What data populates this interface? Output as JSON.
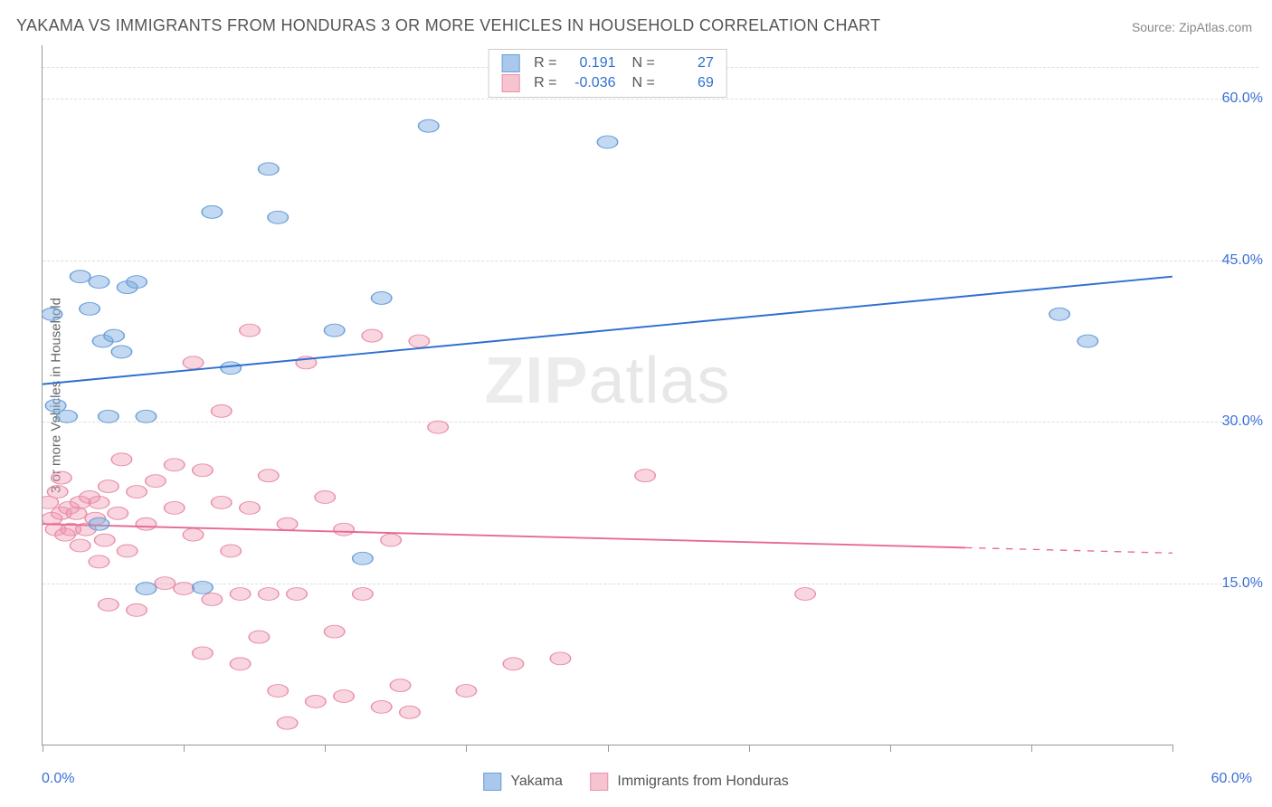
{
  "title": "YAKAMA VS IMMIGRANTS FROM HONDURAS 3 OR MORE VEHICLES IN HOUSEHOLD CORRELATION CHART",
  "source": "Source: ZipAtlas.com",
  "watermark_main": "ZIP",
  "watermark_sub": "atlas",
  "y_axis_title": "3 or more Vehicles in Household",
  "axes": {
    "xlim": [
      0,
      60
    ],
    "ylim": [
      0,
      65
    ],
    "x_label_min": "0.0%",
    "x_label_max": "60.0%",
    "x_label_color": "#3b6fd6",
    "y_ticks": [
      {
        "value": 15,
        "label": "15.0%",
        "color": "#3b6fd6"
      },
      {
        "value": 30,
        "label": "30.0%",
        "color": "#3b6fd6"
      },
      {
        "value": 45,
        "label": "45.0%",
        "color": "#3b6fd6"
      },
      {
        "value": 60,
        "label": "60.0%",
        "color": "#3b6fd6"
      }
    ],
    "x_tick_positions": [
      0,
      7.5,
      15,
      22.5,
      30,
      37.5,
      45,
      52.5,
      60
    ],
    "grid_color": "#dddddd",
    "top_grid": 63
  },
  "series": {
    "yakama": {
      "label": "Yakama",
      "color_fill": "rgba(120,170,225,0.45)",
      "color_stroke": "#6a9fd8",
      "line_color": "#2f6fd0",
      "swatch_fill": "#a9c8ec",
      "swatch_border": "#6a9fd8",
      "R": "0.191",
      "N": "27",
      "marker_radius": 9,
      "line_width": 2.5,
      "trend": {
        "x1": 0,
        "y1": 33.5,
        "x2": 60,
        "y2": 43.5
      },
      "points": [
        [
          0.5,
          40
        ],
        [
          0.7,
          31.5
        ],
        [
          1.3,
          30.5
        ],
        [
          2.0,
          43.5
        ],
        [
          2.5,
          40.5
        ],
        [
          3.0,
          43.0
        ],
        [
          3.0,
          20.5
        ],
        [
          3.2,
          37.5
        ],
        [
          3.5,
          30.5
        ],
        [
          3.8,
          38.0
        ],
        [
          4.2,
          36.5
        ],
        [
          4.5,
          42.5
        ],
        [
          5.0,
          43.0
        ],
        [
          5.5,
          14.5
        ],
        [
          5.5,
          30.5
        ],
        [
          8.5,
          14.6
        ],
        [
          9.0,
          49.5
        ],
        [
          10.0,
          35.0
        ],
        [
          12.0,
          53.5
        ],
        [
          12.5,
          49.0
        ],
        [
          15.5,
          38.5
        ],
        [
          17.0,
          17.3
        ],
        [
          18.0,
          41.5
        ],
        [
          20.5,
          57.5
        ],
        [
          30.0,
          56.0
        ],
        [
          54.0,
          40.0
        ],
        [
          55.5,
          37.5
        ]
      ]
    },
    "honduras": {
      "label": "Immigrants from Honduras",
      "color_fill": "rgba(240,150,175,0.40)",
      "color_stroke": "#e890aa",
      "line_color": "#e76a93",
      "swatch_fill": "#f6c3d1",
      "swatch_border": "#e890aa",
      "R": "-0.036",
      "N": "69",
      "marker_radius": 9,
      "line_width": 2.5,
      "trend": {
        "x1": 0,
        "y1": 20.5,
        "x2": 49,
        "y2": 18.3
      },
      "trend_dash": {
        "x1": 49,
        "y1": 18.3,
        "x2": 60,
        "y2": 17.8
      },
      "points": [
        [
          0.3,
          22.5
        ],
        [
          0.5,
          21.0
        ],
        [
          0.7,
          20.0
        ],
        [
          0.8,
          23.5
        ],
        [
          1.0,
          21.5
        ],
        [
          1.2,
          19.5
        ],
        [
          1.4,
          22.0
        ],
        [
          1.5,
          20.0
        ],
        [
          1.8,
          21.5
        ],
        [
          2.0,
          18.5
        ],
        [
          2.0,
          22.5
        ],
        [
          2.3,
          20.0
        ],
        [
          2.5,
          23.0
        ],
        [
          2.8,
          21.0
        ],
        [
          3.0,
          17.0
        ],
        [
          3.0,
          22.5
        ],
        [
          3.3,
          19.0
        ],
        [
          3.5,
          24.0
        ],
        [
          3.5,
          13.0
        ],
        [
          4.0,
          21.5
        ],
        [
          4.2,
          26.5
        ],
        [
          4.5,
          18.0
        ],
        [
          5.0,
          23.5
        ],
        [
          5.0,
          12.5
        ],
        [
          5.5,
          20.5
        ],
        [
          6.0,
          24.5
        ],
        [
          6.5,
          15.0
        ],
        [
          7.0,
          22.0
        ],
        [
          7.0,
          26.0
        ],
        [
          7.5,
          14.5
        ],
        [
          8.0,
          35.5
        ],
        [
          8.0,
          19.5
        ],
        [
          8.5,
          8.5
        ],
        [
          8.5,
          25.5
        ],
        [
          9.0,
          13.5
        ],
        [
          9.5,
          22.5
        ],
        [
          9.5,
          31.0
        ],
        [
          10.0,
          18.0
        ],
        [
          10.5,
          14.0
        ],
        [
          10.5,
          7.5
        ],
        [
          11.0,
          38.5
        ],
        [
          11.0,
          22.0
        ],
        [
          11.5,
          10.0
        ],
        [
          12.0,
          14.0
        ],
        [
          12.0,
          25.0
        ],
        [
          12.5,
          5.0
        ],
        [
          13.0,
          20.5
        ],
        [
          13.0,
          2.0
        ],
        [
          13.5,
          14.0
        ],
        [
          14.0,
          35.5
        ],
        [
          14.5,
          4.0
        ],
        [
          15.0,
          23.0
        ],
        [
          15.5,
          10.5
        ],
        [
          16.0,
          20.0
        ],
        [
          16.0,
          4.5
        ],
        [
          17.0,
          14.0
        ],
        [
          17.5,
          38.0
        ],
        [
          18.0,
          3.5
        ],
        [
          18.5,
          19.0
        ],
        [
          19.0,
          5.5
        ],
        [
          19.5,
          3.0
        ],
        [
          20.0,
          37.5
        ],
        [
          21.0,
          29.5
        ],
        [
          22.5,
          5.0
        ],
        [
          25.0,
          7.5
        ],
        [
          27.5,
          8.0
        ],
        [
          32.0,
          25.0
        ],
        [
          40.5,
          14.0
        ],
        [
          1.0,
          24.8
        ]
      ]
    }
  },
  "stats_legend": {
    "label_R": "R =",
    "label_N": "N =",
    "value_color": "#2f6fd0",
    "label_color": "#555555"
  },
  "colors": {
    "title": "#555555",
    "source": "#888888",
    "axis": "#999999",
    "y_title": "#666666"
  }
}
